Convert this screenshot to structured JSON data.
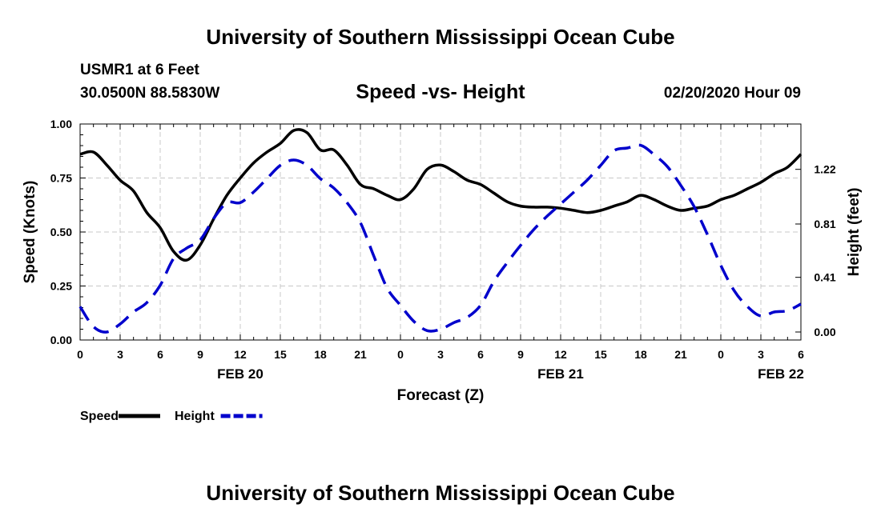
{
  "header": {
    "title": "University of Southern Mississippi Ocean Cube",
    "station": "USMR1 at 6 Feet",
    "coords": "30.0500N 88.5830W",
    "subtitle": "Speed -vs- Height",
    "datetime": "02/20/2020 Hour 09"
  },
  "footer": {
    "title": "University of Southern Mississippi Ocean Cube"
  },
  "chart_data": {
    "type": "line",
    "xlabel": "Forecast (Z)",
    "ylabel_left": "Speed (Knots)",
    "ylabel_right": "Height (feet)",
    "xlim": [
      0,
      54
    ],
    "ylim_left": [
      0,
      1
    ],
    "ylim_right": [
      -0.06,
      1.56
    ],
    "grid": true,
    "x_ticks": [
      0,
      3,
      6,
      9,
      12,
      15,
      18,
      21,
      24,
      27,
      30,
      33,
      36,
      39,
      42,
      45,
      48,
      51,
      54
    ],
    "x_tick_labels": [
      "0",
      "3",
      "6",
      "9",
      "12",
      "15",
      "18",
      "21",
      "0",
      "3",
      "6",
      "9",
      "12",
      "15",
      "18",
      "21",
      "0",
      "3",
      "6"
    ],
    "y_left_ticks": [
      "0.00",
      "0.25",
      "0.50",
      "0.75",
      "1.00"
    ],
    "y_right_ticks": [
      "0.00",
      "0.41",
      "0.81",
      "1.22"
    ],
    "y_right_tick_values": [
      0.0,
      0.41,
      0.81,
      1.22
    ],
    "date_labels": [
      {
        "x": 12,
        "label": "FEB 20"
      },
      {
        "x": 36,
        "label": "FEB 21"
      },
      {
        "x": 52.5,
        "label": "FEB 22"
      }
    ],
    "legend_position": "bottom-left",
    "series": [
      {
        "name": "Speed",
        "axis": "left",
        "color": "#000000",
        "dash": "solid",
        "x": [
          0,
          1,
          2,
          3,
          4,
          5,
          6,
          7,
          8,
          9,
          10,
          11,
          12,
          13,
          14,
          15,
          16,
          17,
          18,
          19,
          20,
          21,
          22,
          23,
          24,
          25,
          26,
          27,
          28,
          29,
          30,
          31,
          32,
          33,
          34,
          35,
          36,
          37,
          38,
          39,
          40,
          41,
          42,
          43,
          44,
          45,
          46,
          47,
          48,
          49,
          50,
          51,
          52,
          53,
          54
        ],
        "values": [
          0.86,
          0.87,
          0.81,
          0.74,
          0.69,
          0.59,
          0.52,
          0.41,
          0.37,
          0.44,
          0.56,
          0.67,
          0.75,
          0.82,
          0.87,
          0.91,
          0.97,
          0.96,
          0.88,
          0.88,
          0.81,
          0.72,
          0.7,
          0.67,
          0.65,
          0.7,
          0.79,
          0.81,
          0.78,
          0.74,
          0.72,
          0.68,
          0.64,
          0.62,
          0.615,
          0.615,
          0.61,
          0.6,
          0.59,
          0.6,
          0.62,
          0.64,
          0.67,
          0.65,
          0.62,
          0.6,
          0.61,
          0.62,
          0.65,
          0.67,
          0.7,
          0.73,
          0.77,
          0.8,
          0.86
        ]
      },
      {
        "name": "Height",
        "axis": "right",
        "color": "#0000cc",
        "dash": "dashed",
        "x": [
          0,
          1,
          2,
          3,
          4,
          5,
          6,
          7,
          8,
          9,
          10,
          11,
          12,
          13,
          14,
          15,
          16,
          17,
          18,
          19,
          20,
          21,
          22,
          23,
          24,
          25,
          26,
          27,
          28,
          29,
          30,
          31,
          32,
          33,
          34,
          35,
          36,
          37,
          38,
          39,
          40,
          41,
          42,
          43,
          44,
          45,
          46,
          47,
          48,
          49,
          50,
          51,
          52,
          53,
          54
        ],
        "values": [
          0.19,
          0.04,
          0.0,
          0.06,
          0.15,
          0.22,
          0.35,
          0.55,
          0.63,
          0.69,
          0.85,
          0.97,
          0.97,
          1.05,
          1.15,
          1.25,
          1.29,
          1.25,
          1.15,
          1.08,
          0.97,
          0.82,
          0.57,
          0.33,
          0.2,
          0.08,
          0.01,
          0.02,
          0.07,
          0.11,
          0.2,
          0.38,
          0.52,
          0.65,
          0.77,
          0.87,
          0.96,
          1.05,
          1.14,
          1.25,
          1.36,
          1.38,
          1.4,
          1.33,
          1.24,
          1.1,
          0.94,
          0.73,
          0.5,
          0.31,
          0.19,
          0.12,
          0.15,
          0.16,
          0.21
        ]
      }
    ]
  }
}
